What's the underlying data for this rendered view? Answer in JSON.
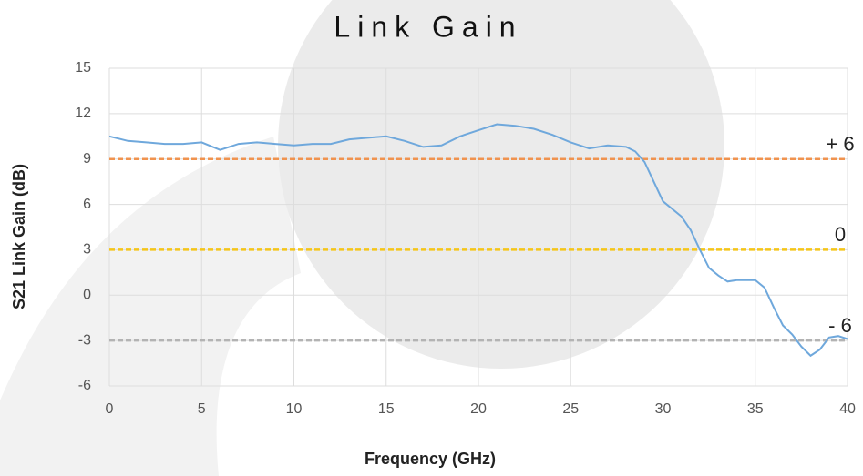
{
  "chart_data": {
    "type": "line",
    "title": "Link Gain",
    "x_label": "Frequency (GHz)",
    "y_label": "S21 Link Gain (dB)",
    "x": [
      0,
      1,
      2,
      3,
      4,
      5,
      6,
      7,
      8,
      9,
      10,
      11,
      12,
      13,
      14,
      15,
      16,
      17,
      18,
      19,
      20,
      21,
      22,
      23,
      24,
      25,
      26,
      27,
      28,
      28.5,
      29,
      29.5,
      30,
      31,
      31.5,
      32,
      32.5,
      33,
      33.5,
      34,
      35,
      35.5,
      36,
      36.5,
      37,
      37.5,
      38,
      38.5,
      39,
      39.5,
      40
    ],
    "series": [
      {
        "color": "#6fa8dc",
        "values": [
          10.5,
          10.2,
          10.1,
          10.0,
          10.0,
          10.1,
          9.6,
          10.0,
          10.1,
          10.0,
          9.9,
          10.0,
          10.0,
          10.3,
          10.4,
          10.5,
          10.2,
          9.8,
          9.9,
          10.5,
          10.9,
          11.3,
          11.2,
          11.0,
          10.6,
          10.1,
          9.7,
          9.9,
          9.8,
          9.5,
          8.8,
          7.5,
          6.2,
          5.2,
          4.3,
          3.0,
          1.8,
          1.3,
          0.9,
          1.0,
          1.0,
          0.5,
          -0.8,
          -2.0,
          -2.6,
          -3.4,
          -4.0,
          -3.6,
          -2.8,
          -2.7,
          -2.9
        ]
      }
    ],
    "reference_lines": [
      {
        "value": 9,
        "label": "+ 6",
        "color": "#f0934f"
      },
      {
        "value": 3,
        "label": "0",
        "color": "#f5c518"
      },
      {
        "value": -3,
        "label": "- 6",
        "color": "#b3b3b3"
      }
    ],
    "xlim": [
      0,
      40
    ],
    "xticks": [
      0,
      5,
      10,
      15,
      20,
      25,
      30,
      35,
      40
    ],
    "ylim": [
      -6,
      15
    ],
    "yticks": [
      -6,
      -3,
      0,
      3,
      6,
      9,
      12,
      15
    ],
    "grid": true
  }
}
